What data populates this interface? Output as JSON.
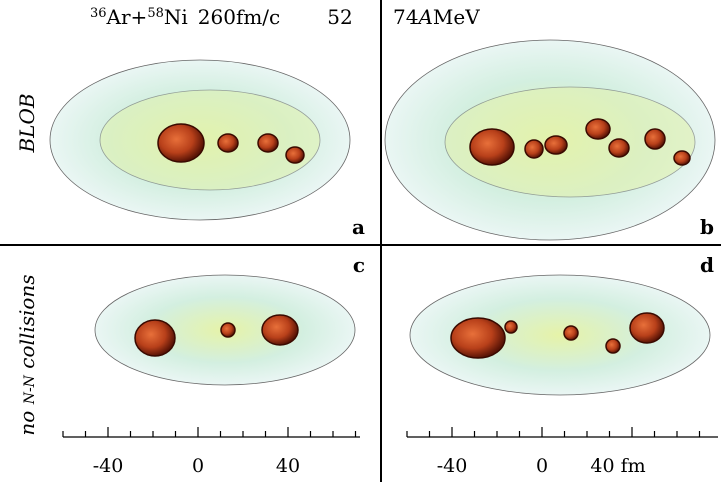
{
  "header": {
    "a_mass": "36",
    "a_sym": "Ar+",
    "b_mass": "58",
    "b_sym": "Ni",
    "time": "260fm/c",
    "page": "52",
    "energy_num": "74",
    "energy_a": "A",
    "energy_unit": "MeV"
  },
  "rows": [
    {
      "label": "BLOB"
    },
    {
      "label_pre": "no ",
      "label_small": "N-N",
      "label_post": " collisions"
    }
  ],
  "panels": [
    "a",
    "b",
    "c",
    "d"
  ],
  "axis": {
    "left_ticks": [
      "-40",
      "0",
      "40"
    ],
    "right_ticks": [
      "-40",
      "0",
      "40 fm"
    ]
  }
}
